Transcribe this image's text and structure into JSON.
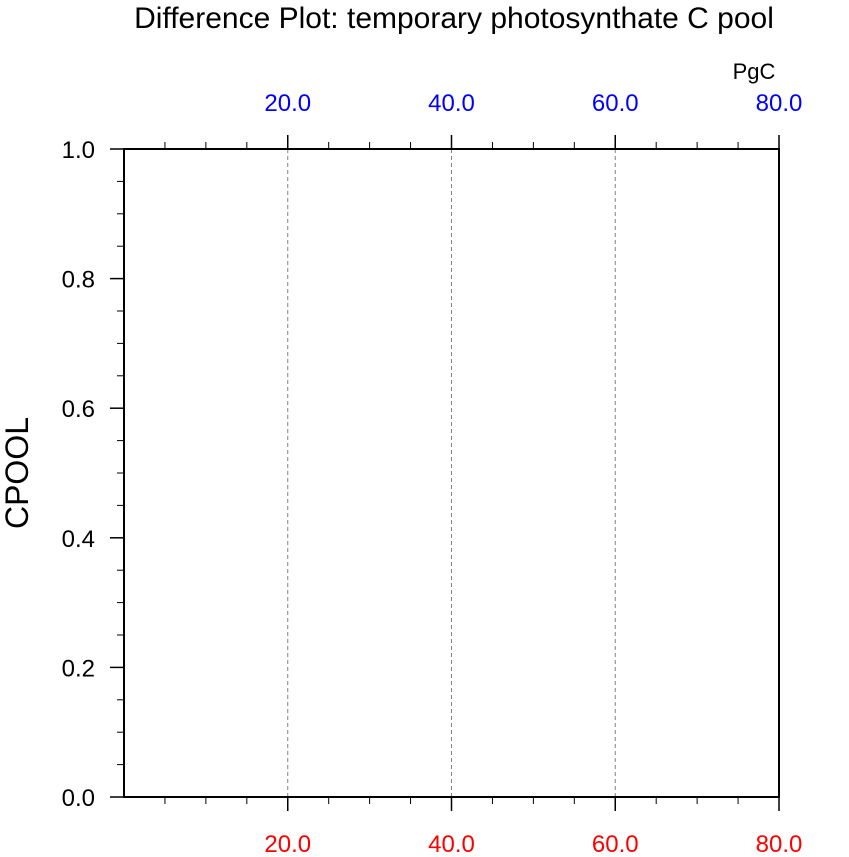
{
  "chart_data": {
    "type": "line",
    "title": "Difference Plot: temporary photosynthate C pool",
    "ylabel": "CPOOL",
    "units": "PgC",
    "xlim": [
      0,
      80
    ],
    "ylim": [
      0,
      1
    ],
    "y_ticks": [
      0.0,
      0.2,
      0.4,
      0.6,
      0.8,
      1.0
    ],
    "y_tick_labels": [
      "0.0",
      "0.2",
      "0.4",
      "0.6",
      "0.8",
      "1.0"
    ],
    "x_bottom_ticks": [
      20,
      40,
      60,
      80
    ],
    "x_bottom_tick_labels": [
      "20.0",
      "40.0",
      "60.0",
      "80.0"
    ],
    "x_top_ticks": [
      20,
      40,
      60,
      80
    ],
    "x_top_tick_labels": [
      "20.0",
      "40.0",
      "60.0",
      "80.0"
    ],
    "vertical_dashed_gridlines": [
      20,
      40,
      60
    ],
    "series": [],
    "colors": {
      "bottom_axis_labels": "#ff0000",
      "top_axis_labels": "#0000ff",
      "frame": "#000000",
      "gridlines": "#808080"
    }
  }
}
